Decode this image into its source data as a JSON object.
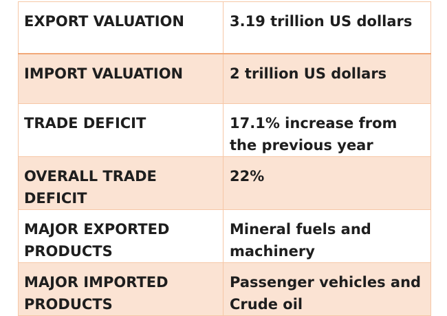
{
  "table": {
    "rows": [
      {
        "label": "EXPORT VALUATION",
        "value": "3.19 trillion US dollars"
      },
      {
        "label": "IMPORT VALUATION",
        "value": "2 trillion US dollars"
      },
      {
        "label": "TRADE DEFICIT",
        "value": "17.1% increase from the previous year"
      },
      {
        "label": "OVERALL TRADE DEFICIT",
        "value": "22%"
      },
      {
        "label": "MAJOR EXPORTED PRODUCTS",
        "value": "Mineral fuels and machinery"
      },
      {
        "label": "MAJOR IMPORTED PRODUCTS",
        "value": "Passenger vehicles and Crude oil"
      }
    ]
  },
  "colors": {
    "border": "#f6c7a6",
    "header_border": "#f2a878",
    "band_fill": "#fbe3d3",
    "text": "#1e1e1e"
  }
}
